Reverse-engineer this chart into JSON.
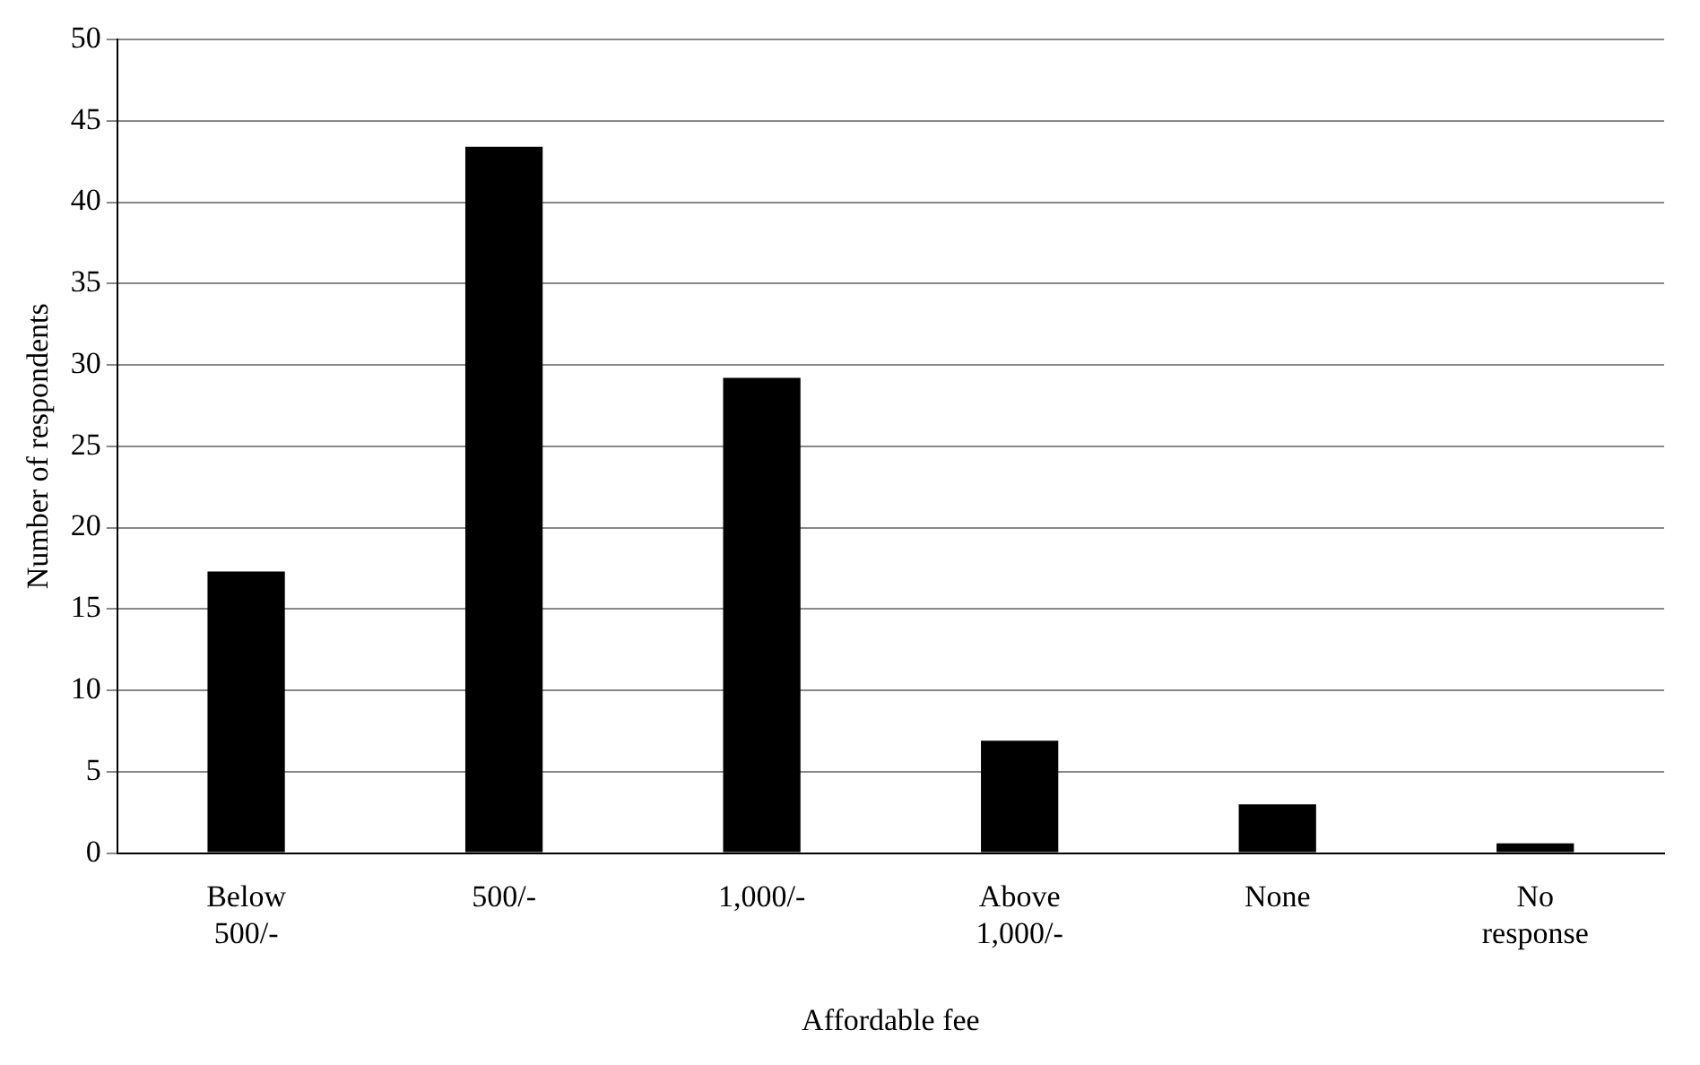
{
  "chart_data": {
    "type": "bar",
    "xlabel": "Affordable fee",
    "ylabel": "Number of respondents",
    "categories": [
      "Below 500/-",
      "500/-",
      "1,000/-",
      "Above 1,000/-",
      "None",
      "No response"
    ],
    "values": [
      17.3,
      43.4,
      29.2,
      6.9,
      3,
      0.6
    ],
    "color": "#000000",
    "ylim": [
      0,
      50
    ],
    "yticks": [
      0,
      5,
      10,
      15,
      20,
      25,
      30,
      35,
      40,
      45,
      50
    ],
    "grid": "y",
    "legend": false
  }
}
